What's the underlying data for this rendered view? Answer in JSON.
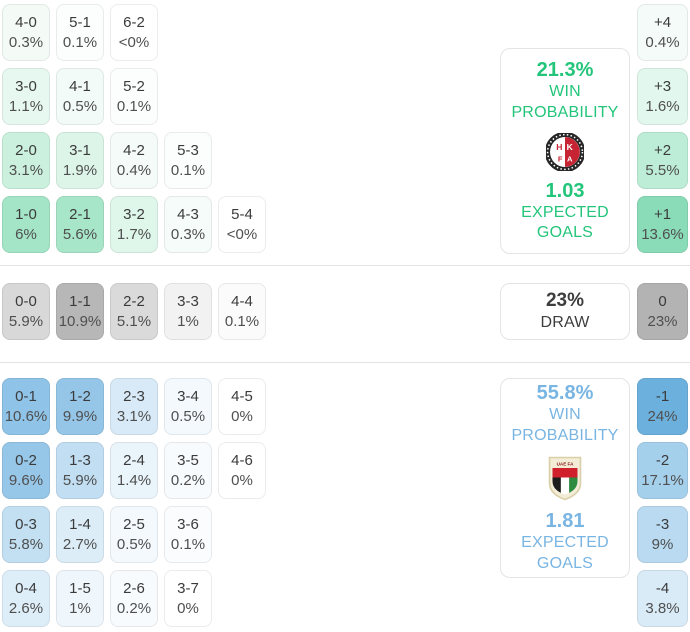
{
  "colors": {
    "home_accent": "#23c57a",
    "away_accent": "#79b5e2",
    "draw_text": "#3e3e3e",
    "separator": "#e3e3e3",
    "score_text": "#3b3b3b",
    "pct_text": "#4f4f4f"
  },
  "home": {
    "panel": {
      "win_pct": "21.3%",
      "win_line1": "WIN",
      "win_line2": "PROBABILITY",
      "xg": "1.03",
      "xg_line1": "EXPECTED",
      "xg_line2": "GOALS",
      "logo_icon": "hkfa-crest",
      "logo_text_top_left": "H",
      "logo_text_top_right": "K",
      "logo_text_bottom_left": "F",
      "logo_text_bottom_right": "A"
    },
    "rows": [
      [
        {
          "score": "4-0",
          "pct": "0.3%",
          "bg": "#f4fbf7"
        },
        {
          "score": "5-1",
          "pct": "0.1%",
          "bg": "#fcfefd"
        },
        {
          "score": "6-2",
          "pct": "<0%",
          "bg": "#ffffff"
        }
      ],
      [
        {
          "score": "3-0",
          "pct": "1.1%",
          "bg": "#e7f8f0"
        },
        {
          "score": "4-1",
          "pct": "0.5%",
          "bg": "#f2fbf7"
        },
        {
          "score": "5-2",
          "pct": "0.1%",
          "bg": "#fcfefd"
        }
      ],
      [
        {
          "score": "2-0",
          "pct": "3.1%",
          "bg": "#cbf1de"
        },
        {
          "score": "3-1",
          "pct": "1.9%",
          "bg": "#ddf5e9"
        },
        {
          "score": "4-2",
          "pct": "0.4%",
          "bg": "#f4fbf8"
        },
        {
          "score": "5-3",
          "pct": "0.1%",
          "bg": "#fcfefd"
        }
      ],
      [
        {
          "score": "1-0",
          "pct": "6%",
          "bg": "#a4e5c7"
        },
        {
          "score": "2-1",
          "pct": "5.6%",
          "bg": "#a8e6c9"
        },
        {
          "score": "3-2",
          "pct": "1.7%",
          "bg": "#dff6ea"
        },
        {
          "score": "4-3",
          "pct": "0.3%",
          "bg": "#f5fcf9"
        },
        {
          "score": "5-4",
          "pct": "<0%",
          "bg": "#ffffff"
        }
      ]
    ],
    "diffs": [
      {
        "label": "+4",
        "pct": "0.4%",
        "bg": "#f4fbf8"
      },
      {
        "label": "+3",
        "pct": "1.6%",
        "bg": "#e2f7ed"
      },
      {
        "label": "+2",
        "pct": "5.5%",
        "bg": "#bdedd6"
      },
      {
        "label": "+1",
        "pct": "13.6%",
        "bg": "#8adcb8"
      }
    ]
  },
  "draw": {
    "panel": {
      "pct": "23%",
      "label": "DRAW"
    },
    "cells": [
      {
        "score": "0-0",
        "pct": "5.9%",
        "bg": "#d8d8d8"
      },
      {
        "score": "1-1",
        "pct": "10.9%",
        "bg": "#b7b7b7"
      },
      {
        "score": "2-2",
        "pct": "5.1%",
        "bg": "#dadada"
      },
      {
        "score": "3-3",
        "pct": "1%",
        "bg": "#f2f2f2"
      },
      {
        "score": "4-4",
        "pct": "0.1%",
        "bg": "#fbfbfb"
      }
    ],
    "diff": {
      "label": "0",
      "pct": "23%",
      "bg": "#b3b3b3"
    }
  },
  "away": {
    "panel": {
      "win_pct": "55.8%",
      "win_line1": "WIN",
      "win_line2": "PROBABILITY",
      "xg": "1.81",
      "xg_line1": "EXPECTED",
      "xg_line2": "GOALS",
      "logo_icon": "uaefa-crest",
      "logo_text": "UAE FA"
    },
    "rows": [
      [
        {
          "score": "0-1",
          "pct": "10.6%",
          "bg": "#8fc3e7"
        },
        {
          "score": "1-2",
          "pct": "9.9%",
          "bg": "#95c6e8"
        },
        {
          "score": "2-3",
          "pct": "3.1%",
          "bg": "#d8eaf7"
        },
        {
          "score": "3-4",
          "pct": "0.5%",
          "bg": "#f3f9fd"
        },
        {
          "score": "4-5",
          "pct": "0%",
          "bg": "#ffffff"
        }
      ],
      [
        {
          "score": "0-2",
          "pct": "9.6%",
          "bg": "#97c7e8"
        },
        {
          "score": "1-3",
          "pct": "5.9%",
          "bg": "#c2def2"
        },
        {
          "score": "2-4",
          "pct": "1.4%",
          "bg": "#eaf4fb"
        },
        {
          "score": "3-5",
          "pct": "0.2%",
          "bg": "#f8fbfe"
        },
        {
          "score": "4-6",
          "pct": "0%",
          "bg": "#ffffff"
        }
      ],
      [
        {
          "score": "0-3",
          "pct": "5.8%",
          "bg": "#c3dff2"
        },
        {
          "score": "1-4",
          "pct": "2.7%",
          "bg": "#dcedf8"
        },
        {
          "score": "2-5",
          "pct": "0.5%",
          "bg": "#f3f9fd"
        },
        {
          "score": "3-6",
          "pct": "0.1%",
          "bg": "#fafcfe"
        }
      ],
      [
        {
          "score": "0-4",
          "pct": "2.6%",
          "bg": "#deeef9"
        },
        {
          "score": "1-5",
          "pct": "1%",
          "bg": "#eff6fc"
        },
        {
          "score": "2-6",
          "pct": "0.2%",
          "bg": "#f8fbfe"
        },
        {
          "score": "3-7",
          "pct": "0%",
          "bg": "#ffffff"
        }
      ]
    ],
    "diffs": [
      {
        "label": "-1",
        "pct": "24%",
        "bg": "#6cb1dd"
      },
      {
        "label": "-2",
        "pct": "17.1%",
        "bg": "#a5d0ec"
      },
      {
        "label": "-3",
        "pct": "9%",
        "bg": "#b9daf0"
      },
      {
        "label": "-4",
        "pct": "3.8%",
        "bg": "#d9ebf7"
      }
    ]
  }
}
